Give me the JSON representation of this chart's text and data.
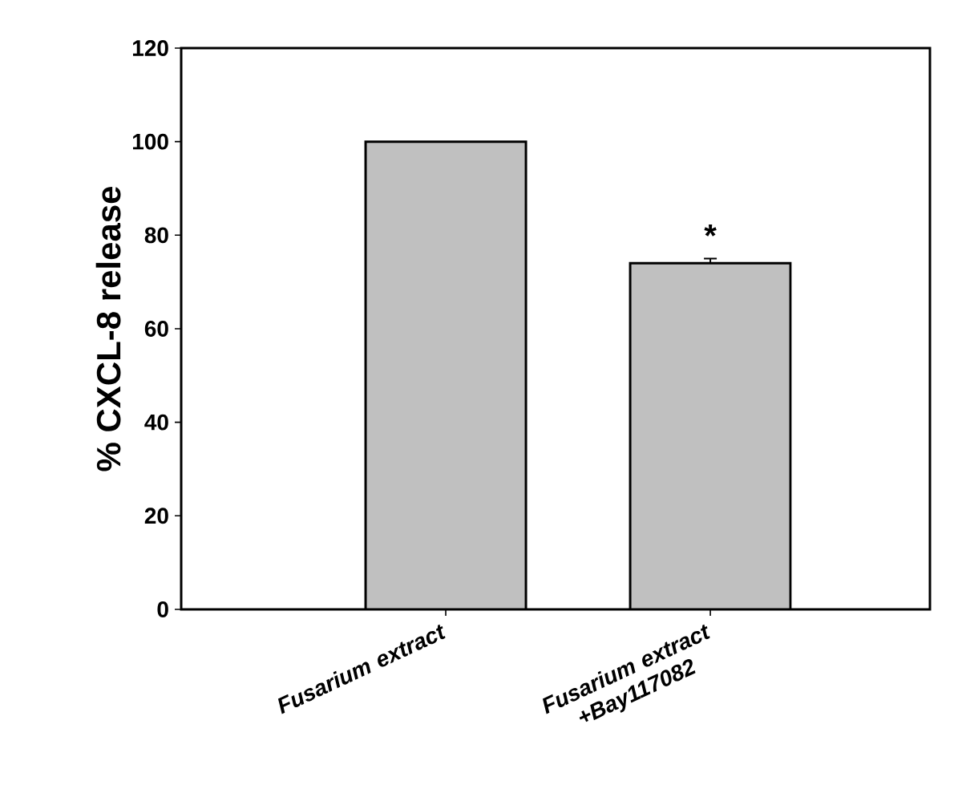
{
  "chart_data": {
    "type": "bar",
    "ylabel": "% CXCL-8 release",
    "categories": [
      "*Fusarium* extract",
      "*Fusarium* extract +Bay117082"
    ],
    "values": [
      100,
      74
    ],
    "errors": [
      null,
      1
    ],
    "color": "#c0c0c0",
    "ylim": [
      0,
      120
    ],
    "yticks": [
      0,
      20,
      40,
      60,
      80,
      100,
      120
    ],
    "annotations": [
      "*"
    ]
  }
}
